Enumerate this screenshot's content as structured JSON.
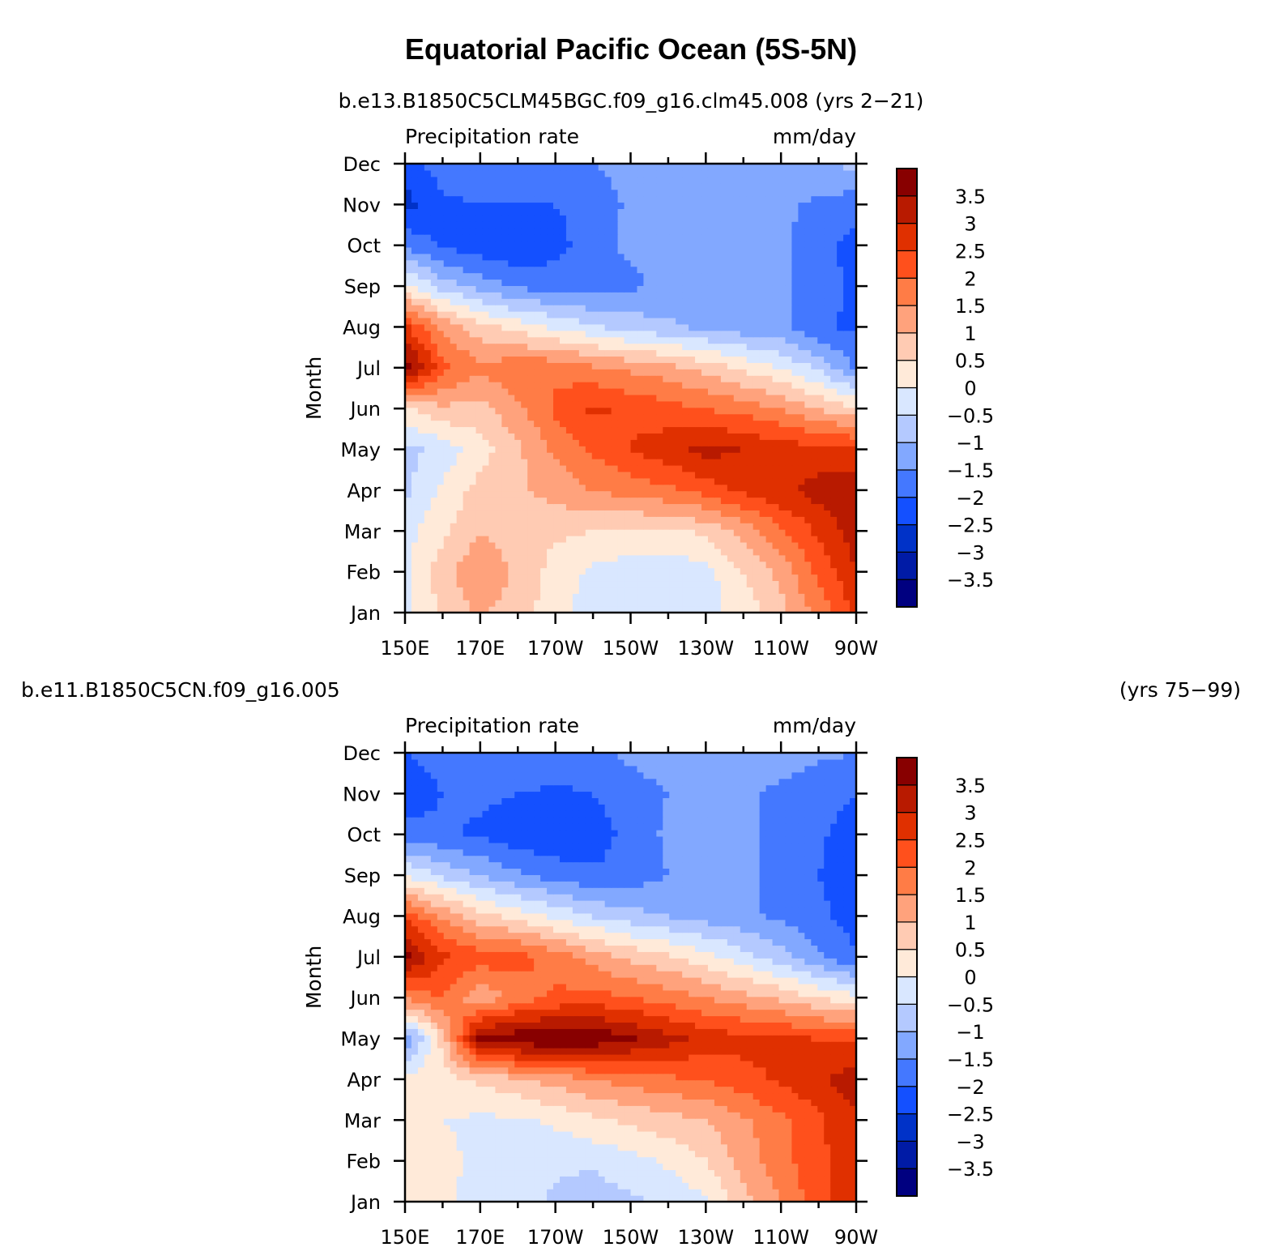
{
  "page": {
    "title": "Equatorial Pacific Ocean (5S-5N)",
    "colors": {
      "c-3.75": "#000080",
      "c-3.25": "#001ba6",
      "c-2.75": "#0032c8",
      "c-2.25": "#1450ff",
      "c-1.75": "#4478ff",
      "c-1.25": "#82a8ff",
      "c-0.75": "#b4c9ff",
      "c-0.25": "#d9e7ff",
      "c0.25": "#ffead9",
      "c0.75": "#ffcbb3",
      "c1.25": "#ffa27c",
      "c1.75": "#ff7c46",
      "c2.25": "#ff501c",
      "c2.75": "#e03000",
      "c3.25": "#b81a00",
      "c3.75": "#880000"
    }
  },
  "chart_data": [
    {
      "type": "heatmap",
      "subtitle": "b.e13.B1850C5CLM45BGC.f09_g16.clm45.008 (yrs 2-21)",
      "subtitle_left": "",
      "subtitle_right": "",
      "variable": "Precipitation rate",
      "units": "mm/day",
      "ylabel": "Month",
      "x_tick_labels": [
        "150E",
        "170E",
        "170W",
        "150W",
        "130W",
        "110W",
        "90W"
      ],
      "x": [
        150,
        160,
        170,
        180,
        190,
        200,
        210,
        220,
        230,
        240,
        250,
        260,
        270
      ],
      "y_tick_labels": [
        "Jan",
        "Feb",
        "Mar",
        "Apr",
        "May",
        "Jun",
        "Jul",
        "Aug",
        "Sep",
        "Oct",
        "Nov",
        "Dec"
      ],
      "colorbar_labels": [
        "-3.5",
        "-3",
        "-2.5",
        "-2",
        "-1.5",
        "-1",
        "-0.5",
        "0",
        "0.5",
        "1",
        "1.5",
        "2",
        "2.5",
        "3",
        "3.5"
      ],
      "colorbar_levels": [
        -3.5,
        -3,
        -2.5,
        -2,
        -1.5,
        -1,
        -0.5,
        0,
        0.5,
        1,
        1.5,
        2,
        2.5,
        3,
        3.5
      ],
      "z": [
        [
          -0.2,
          0.6,
          1.1,
          0.7,
          0.2,
          -0.3,
          -0.4,
          -0.3,
          -0.2,
          0.2,
          0.8,
          1.7,
          2.6
        ],
        [
          -0.1,
          0.8,
          1.4,
          0.9,
          0.3,
          -0.1,
          -0.3,
          -0.3,
          -0.2,
          0.5,
          1.2,
          2.1,
          3.0
        ],
        [
          -0.2,
          0.4,
          1.0,
          0.7,
          0.6,
          0.5,
          0.4,
          0.4,
          0.6,
          1.2,
          1.9,
          2.6,
          3.3
        ],
        [
          -0.6,
          0.1,
          0.7,
          0.9,
          1.2,
          1.5,
          1.7,
          1.9,
          2.2,
          2.6,
          2.9,
          3.2,
          3.4
        ],
        [
          -0.7,
          -0.3,
          0.3,
          0.9,
          1.6,
          2.1,
          2.5,
          2.8,
          3.2,
          3.0,
          2.8,
          2.7,
          2.6
        ],
        [
          0.4,
          0.9,
          0.8,
          1.4,
          2.1,
          2.6,
          2.4,
          2.2,
          2.0,
          1.8,
          1.5,
          1.0,
          0.6
        ],
        [
          3.9,
          2.2,
          1.6,
          1.9,
          1.9,
          1.6,
          1.4,
          1.2,
          0.8,
          0.4,
          0.0,
          -0.6,
          -1.6
        ],
        [
          2.6,
          1.4,
          0.7,
          0.3,
          -0.1,
          -0.4,
          -0.7,
          -0.9,
          -1.1,
          -1.3,
          -1.4,
          -1.9,
          -2.1
        ],
        [
          0.2,
          -0.7,
          -1.2,
          -1.6,
          -1.7,
          -1.8,
          -1.6,
          -1.4,
          -1.3,
          -1.3,
          -1.4,
          -1.8,
          -2.1
        ],
        [
          -1.6,
          -2.1,
          -2.3,
          -2.4,
          -2.2,
          -1.7,
          -1.4,
          -1.3,
          -1.3,
          -1.3,
          -1.4,
          -1.8,
          -2.2
        ],
        [
          -2.7,
          -2.1,
          -2.0,
          -2.0,
          -2.0,
          -1.8,
          -1.4,
          -1.3,
          -1.3,
          -1.3,
          -1.4,
          -1.6,
          -1.8
        ],
        [
          -2.2,
          -1.8,
          -1.6,
          -1.6,
          -1.7,
          -1.5,
          -1.3,
          -1.2,
          -1.2,
          -1.2,
          -1.1,
          -1.0,
          -0.9
        ]
      ]
    },
    {
      "type": "heatmap",
      "subtitle": "",
      "subtitle_left": "b.e11.B1850C5CN.f09_g16.005",
      "subtitle_right": "(yrs 75-99)",
      "variable": "Precipitation rate",
      "units": "mm/day",
      "ylabel": "Month",
      "x_tick_labels": [
        "150E",
        "170E",
        "170W",
        "150W",
        "130W",
        "110W",
        "90W"
      ],
      "x": [
        150,
        160,
        170,
        180,
        190,
        200,
        210,
        220,
        230,
        240,
        250,
        260,
        270
      ],
      "y_tick_labels": [
        "Jan",
        "Feb",
        "Mar",
        "Apr",
        "May",
        "Jun",
        "Jul",
        "Aug",
        "Sep",
        "Oct",
        "Nov",
        "Dec"
      ],
      "colorbar_labels": [
        "-3.5",
        "-3",
        "-2.5",
        "-2",
        "-1.5",
        "-1",
        "-0.5",
        "0",
        "0.5",
        "1",
        "1.5",
        "2",
        "2.5",
        "3",
        "3.5"
      ],
      "colorbar_levels": [
        -3.5,
        -3,
        -2.5,
        -2,
        -1.5,
        -1,
        -0.5,
        0,
        0.5,
        1,
        1.5,
        2,
        2.5,
        3,
        3.5
      ],
      "z": [
        [
          0.1,
          0.2,
          -0.3,
          -0.3,
          -0.6,
          -0.8,
          -0.6,
          -0.4,
          -0.1,
          0.8,
          1.5,
          2.3,
          2.8
        ],
        [
          0.2,
          0.2,
          -0.2,
          -0.2,
          -0.4,
          -0.4,
          -0.2,
          0.1,
          0.5,
          1.2,
          1.8,
          2.4,
          2.8
        ],
        [
          0.2,
          0.0,
          -0.1,
          -0.1,
          0.1,
          0.4,
          0.6,
          0.8,
          1.0,
          1.4,
          1.9,
          2.4,
          2.9
        ],
        [
          0.2,
          0.3,
          0.6,
          0.9,
          1.2,
          1.5,
          1.7,
          1.9,
          2.0,
          2.3,
          2.6,
          2.9,
          3.3
        ],
        [
          -1.6,
          0.7,
          3.7,
          3.9,
          4.0,
          3.9,
          3.6,
          3.2,
          2.8,
          2.7,
          2.6,
          2.5,
          2.4
        ],
        [
          1.6,
          2.0,
          1.1,
          1.7,
          2.1,
          2.2,
          2.0,
          1.8,
          1.5,
          1.2,
          0.9,
          0.5,
          0.2
        ],
        [
          3.7,
          2.6,
          2.3,
          2.2,
          1.8,
          1.3,
          0.9,
          0.6,
          0.2,
          -0.3,
          -0.8,
          -1.4,
          -2.0
        ],
        [
          2.4,
          1.4,
          0.7,
          0.3,
          -0.1,
          -0.5,
          -0.8,
          -1.0,
          -1.2,
          -1.4,
          -1.6,
          -1.9,
          -2.2
        ],
        [
          0.0,
          -0.6,
          -1.0,
          -1.4,
          -1.7,
          -1.9,
          -1.8,
          -1.5,
          -1.3,
          -1.4,
          -1.6,
          -2.0,
          -2.3
        ],
        [
          -1.8,
          -1.9,
          -2.1,
          -2.3,
          -2.4,
          -2.3,
          -1.8,
          -1.4,
          -1.3,
          -1.4,
          -1.6,
          -1.9,
          -2.3
        ],
        [
          -2.3,
          -2.0,
          -1.9,
          -2.0,
          -2.1,
          -2.0,
          -1.7,
          -1.5,
          -1.3,
          -1.4,
          -1.6,
          -1.8,
          -2.0
        ],
        [
          -2.0,
          -1.8,
          -1.7,
          -1.6,
          -1.7,
          -1.6,
          -1.4,
          -1.3,
          -1.2,
          -1.2,
          -1.3,
          -1.4,
          -1.5
        ]
      ]
    }
  ]
}
